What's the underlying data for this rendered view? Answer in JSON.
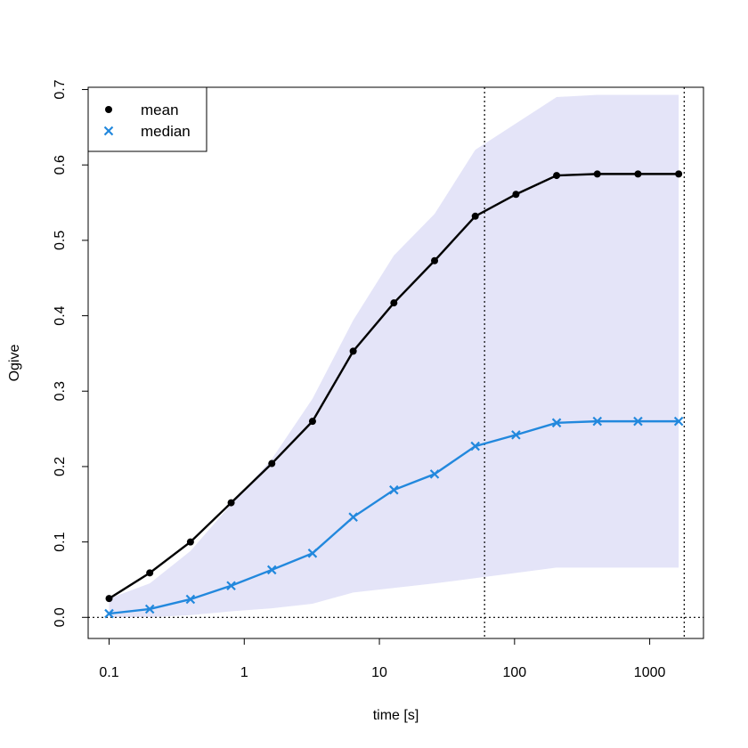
{
  "chart_data": {
    "type": "line",
    "xlabel": "time [s]",
    "ylabel": "Ogive",
    "xscale": "log",
    "xlim": [
      0.07,
      2500
    ],
    "ylim": [
      -0.028,
      0.703
    ],
    "x_ticks": [
      {
        "value": 0.1,
        "label": "0.1"
      },
      {
        "value": 1,
        "label": "1"
      },
      {
        "value": 10,
        "label": "10"
      },
      {
        "value": 100,
        "label": "100"
      },
      {
        "value": 1000,
        "label": "1000"
      }
    ],
    "y_ticks": [
      {
        "value": 0.0,
        "label": "0.0"
      },
      {
        "value": 0.1,
        "label": "0.1"
      },
      {
        "value": 0.2,
        "label": "0.2"
      },
      {
        "value": 0.3,
        "label": "0.3"
      },
      {
        "value": 0.4,
        "label": "0.4"
      },
      {
        "value": 0.5,
        "label": "0.5"
      },
      {
        "value": 0.6,
        "label": "0.6"
      },
      {
        "value": 0.7,
        "label": "0.7"
      }
    ],
    "x": [
      0.1,
      0.2,
      0.4,
      0.8,
      1.6,
      3.2,
      6.4,
      12.8,
      25.6,
      51.2,
      102.4,
      204.8,
      409.6,
      819.2,
      1638.4
    ],
    "series": [
      {
        "name": "mean",
        "marker": "dot",
        "color": "#000000",
        "values": [
          0.025,
          0.059,
          0.1,
          0.152,
          0.204,
          0.26,
          0.353,
          0.417,
          0.473,
          0.532,
          0.561,
          0.586,
          0.588,
          0.588,
          0.588
        ]
      },
      {
        "name": "median",
        "marker": "x",
        "color": "#2288dd",
        "values": [
          0.005,
          0.011,
          0.024,
          0.042,
          0.063,
          0.085,
          0.133,
          0.169,
          0.19,
          0.227,
          0.242,
          0.258,
          0.26,
          0.26,
          0.26
        ]
      }
    ],
    "band": {
      "color": "#e4e4f8",
      "upper": [
        0.025,
        0.045,
        0.088,
        0.15,
        0.21,
        0.29,
        0.394,
        0.48,
        0.535,
        0.62,
        0.655,
        0.69,
        0.693,
        0.693,
        0.693
      ],
      "lower": [
        0.0,
        0.0,
        0.003,
        0.008,
        0.012,
        0.018,
        0.033,
        0.039,
        0.045,
        0.052,
        0.059,
        0.066,
        0.066,
        0.066,
        0.066
      ]
    },
    "reference_lines": {
      "horizontal": [
        0.0
      ],
      "vertical": [
        60,
        1800
      ]
    },
    "grid": false,
    "legend_position": "top-left"
  }
}
